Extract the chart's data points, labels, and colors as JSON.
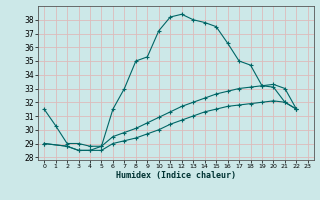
{
  "xlabel": "Humidex (Indice chaleur)",
  "background_color": "#cce8e8",
  "grid_color": "#ddbbbb",
  "line_color": "#006666",
  "xlim": [
    -0.5,
    23.5
  ],
  "ylim": [
    27.8,
    39.0
  ],
  "xticks": [
    0,
    1,
    2,
    3,
    4,
    5,
    6,
    7,
    8,
    9,
    10,
    11,
    12,
    13,
    14,
    15,
    16,
    17,
    18,
    19,
    20,
    21,
    22,
    23
  ],
  "yticks": [
    28,
    29,
    30,
    31,
    32,
    33,
    34,
    35,
    36,
    37,
    38
  ],
  "line1_x": [
    0,
    1,
    2,
    3,
    4,
    5,
    6,
    7,
    8,
    9,
    10,
    11,
    12,
    13,
    14,
    15,
    16,
    17,
    18,
    19,
    20,
    21,
    22
  ],
  "line1_y": [
    31.5,
    30.3,
    29.0,
    29.0,
    28.8,
    28.8,
    31.5,
    33.0,
    35.0,
    35.3,
    37.2,
    38.2,
    38.4,
    38.0,
    37.8,
    37.5,
    36.3,
    35.0,
    34.7,
    33.2,
    33.1,
    32.0,
    31.5
  ],
  "line2_x": [
    0,
    2,
    3,
    4,
    5,
    6,
    7,
    8,
    9,
    10,
    11,
    12,
    13,
    14,
    15,
    16,
    17,
    18,
    19,
    20,
    21,
    22
  ],
  "line2_y": [
    29.0,
    28.8,
    28.5,
    28.5,
    28.8,
    29.5,
    29.8,
    30.1,
    30.5,
    30.9,
    31.3,
    31.7,
    32.0,
    32.3,
    32.6,
    32.8,
    33.0,
    33.1,
    33.2,
    33.3,
    33.0,
    31.5
  ],
  "line3_x": [
    0,
    2,
    3,
    4,
    5,
    6,
    7,
    8,
    9,
    10,
    11,
    12,
    13,
    14,
    15,
    16,
    17,
    18,
    19,
    20,
    21,
    22
  ],
  "line3_y": [
    29.0,
    28.8,
    28.5,
    28.5,
    28.5,
    29.0,
    29.2,
    29.4,
    29.7,
    30.0,
    30.4,
    30.7,
    31.0,
    31.3,
    31.5,
    31.7,
    31.8,
    31.9,
    32.0,
    32.1,
    32.0,
    31.5
  ]
}
